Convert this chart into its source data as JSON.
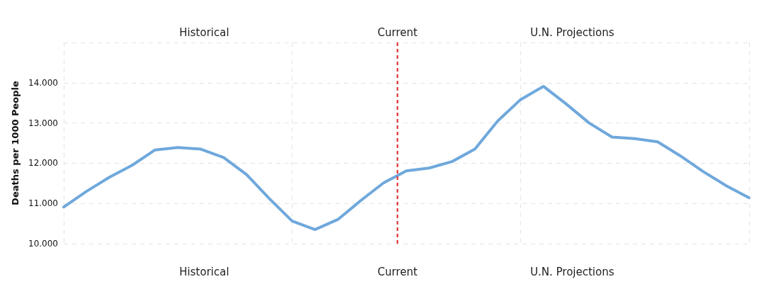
{
  "chart_data": {
    "type": "line",
    "ylabel": "Deaths per 1000 People",
    "annotations": [
      "Historical",
      "Current",
      "U.N. Projections"
    ],
    "categories": [
      null,
      null,
      null,
      null,
      null,
      null,
      null,
      null,
      null,
      null,
      null,
      null,
      null,
      null,
      null,
      null,
      null,
      null,
      null,
      null,
      null,
      null,
      null,
      null,
      null,
      null,
      null,
      null,
      null,
      null,
      null
    ],
    "series": [
      {
        "color": "#6fa8dc",
        "values": [
          10.91,
          11.3,
          11.65,
          11.95,
          12.33,
          12.39,
          12.35,
          12.14,
          11.72,
          11.12,
          10.56,
          10.35,
          10.6,
          11.07,
          11.51,
          11.81,
          11.88,
          12.04,
          12.35,
          13.05,
          13.58,
          13.91,
          13.47,
          13.0,
          12.65,
          12.61,
          12.53,
          12.18,
          11.79,
          11.44,
          11.14
        ]
      }
    ],
    "ylim": [
      10,
      15
    ],
    "yticks": [
      {
        "value": 10,
        "label": "10.000"
      },
      {
        "value": 11,
        "label": "11.000"
      },
      {
        "value": 12,
        "label": "12.000"
      },
      {
        "value": 13,
        "label": "13.000"
      },
      {
        "value": 14,
        "label": "14.000"
      },
      {
        "value": 15,
        "label": null
      }
    ],
    "grid": true,
    "tick_labels": "y",
    "marker": "none",
    "line_style": "solid"
  }
}
